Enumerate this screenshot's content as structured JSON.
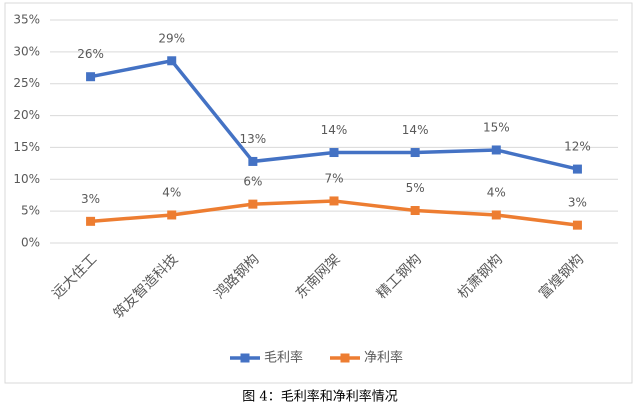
{
  "chart_data": {
    "type": "line",
    "categories": [
      "远大住工",
      "筑友智造科技",
      "鸿路钢构",
      "东南网架",
      "精工钢构",
      "杭萧钢构",
      "富煌钢构"
    ],
    "series": [
      {
        "name": "毛利率",
        "color": "#4472c4",
        "values": [
          26.1,
          28.6,
          12.8,
          14.2,
          14.2,
          14.6,
          11.6
        ],
        "value_labels": [
          "26%",
          "29%",
          "13%",
          "14%",
          "14%",
          "15%",
          "12%"
        ]
      },
      {
        "name": "净利率",
        "color": "#ed7d31",
        "values": [
          3.4,
          4.4,
          6.1,
          6.6,
          5.1,
          4.4,
          2.8
        ],
        "value_labels": [
          "3%",
          "4%",
          "6%",
          "7%",
          "5%",
          "4%",
          "3%"
        ]
      }
    ],
    "ylim": [
      0,
      35
    ],
    "yticks": [
      {
        "value": 0,
        "label": "0%"
      },
      {
        "value": 5,
        "label": "5%"
      },
      {
        "value": 10,
        "label": "10%"
      },
      {
        "value": 15,
        "label": "15%"
      },
      {
        "value": 20,
        "label": "20%"
      },
      {
        "value": 25,
        "label": "25%"
      },
      {
        "value": 30,
        "label": "30%"
      },
      {
        "value": 35,
        "label": "35%"
      }
    ],
    "grid": true,
    "legend": "bottom"
  },
  "caption": "图 4：毛利率和净利率情况"
}
